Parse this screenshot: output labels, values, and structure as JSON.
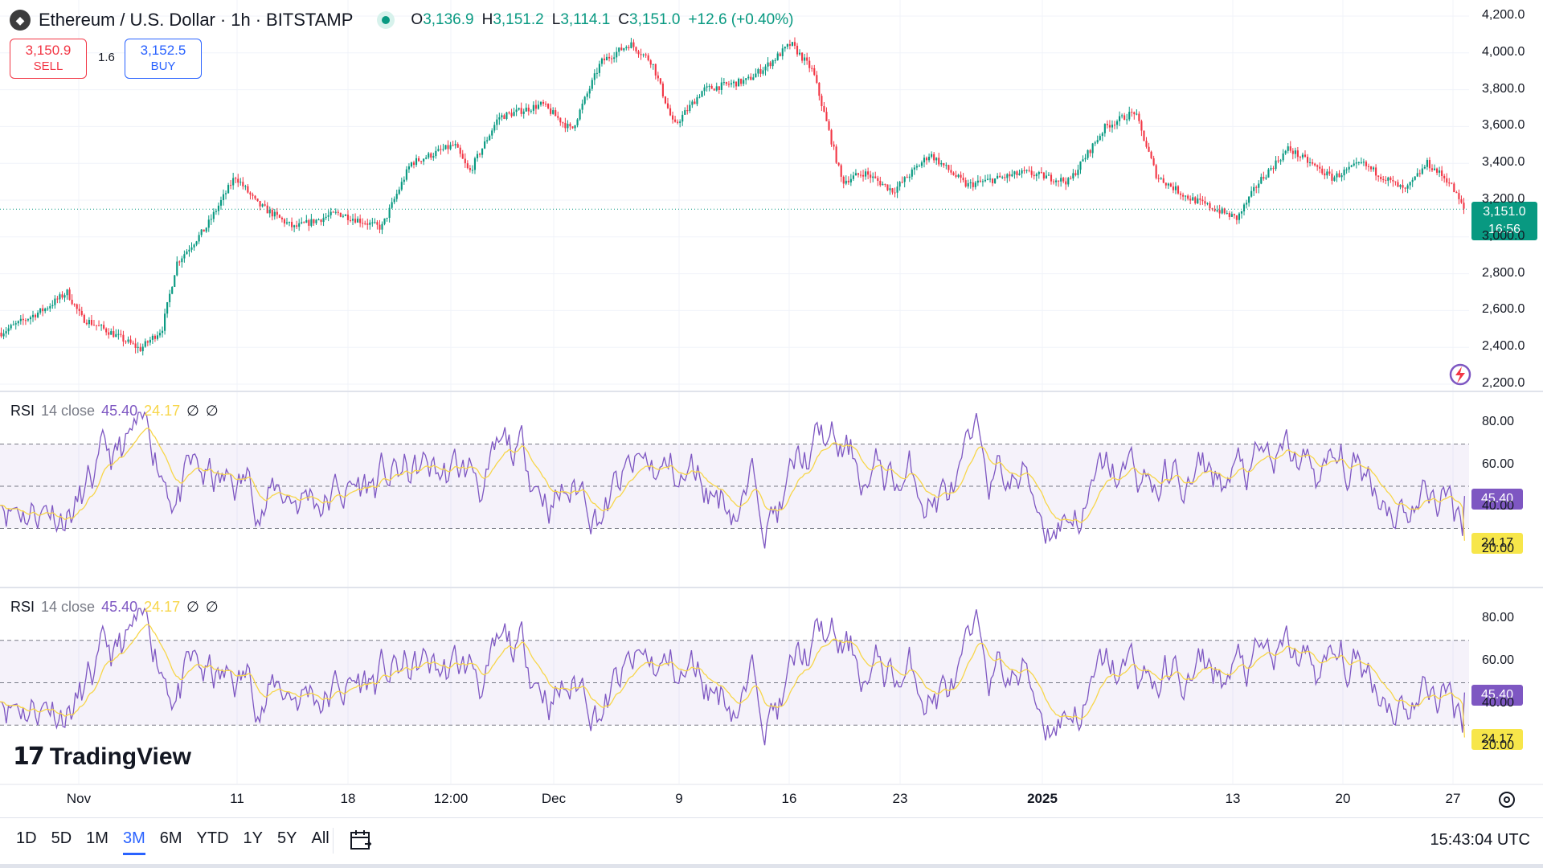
{
  "header": {
    "symbol": "Ethereum",
    "separator1": "/",
    "quote": "U.S. Dollar",
    "dot1": "·",
    "interval": "1h",
    "dot2": "·",
    "exchange": "BITSTAMP",
    "ohlc": {
      "o": "3,136.9",
      "h": "3,151.2",
      "l": "3,114.1",
      "c": "3,151.0",
      "change": "+12.6 (+0.40%)"
    }
  },
  "trade": {
    "sell_price": "3,150.9",
    "sell_label": "SELL",
    "spread": "1.6",
    "buy_price": "3,152.5",
    "buy_label": "BUY"
  },
  "price_tag": {
    "price": "3,151.0",
    "countdown": "16:56"
  },
  "rsi_panels": [
    {
      "name": "RSI",
      "params": "14 close",
      "rsi": "45.40",
      "ma": "24.17",
      "extra1": "∅",
      "extra2": "∅"
    },
    {
      "name": "RSI",
      "params": "14 close",
      "rsi": "45.40",
      "ma": "24.17",
      "extra1": "∅",
      "extra2": "∅"
    }
  ],
  "brand": "TradingView",
  "ranges": [
    "1D",
    "5D",
    "1M",
    "3M",
    "6M",
    "YTD",
    "1Y",
    "5Y",
    "All"
  ],
  "active_range": "3M",
  "clock": "15:43:04 UTC",
  "colors": {
    "up": "#089981",
    "down": "#f23645",
    "rsi": "#7e57c2",
    "rsi_ma": "#f7d64a",
    "accent": "#2962ff"
  },
  "chart_data": [
    {
      "type": "candlestick",
      "title": "Ethereum / U.S. Dollar · 1h · BITSTAMP",
      "y_ticks": [
        "4,200.0",
        "4,000.0",
        "3,800.0",
        "3,600.0",
        "3,400.0",
        "3,200.0",
        "3,000.0",
        "2,800.0",
        "2,600.0",
        "2,400.0",
        "2,200.0"
      ],
      "ylim": [
        2200,
        4200
      ],
      "x_ticks": [
        {
          "label": "Nov",
          "bold": false
        },
        {
          "label": "11",
          "bold": false
        },
        {
          "label": "18",
          "bold": false
        },
        {
          "label": "12:00",
          "bold": false
        },
        {
          "label": "Dec",
          "bold": false
        },
        {
          "label": "9",
          "bold": false
        },
        {
          "label": "16",
          "bold": false
        },
        {
          "label": "23",
          "bold": false
        },
        {
          "label": "2025",
          "bold": true
        },
        {
          "label": "13",
          "bold": false
        },
        {
          "label": "20",
          "bold": false
        },
        {
          "label": "27",
          "bold": false
        }
      ],
      "last_price": 3151.0,
      "trend_points": [
        [
          0,
          2480
        ],
        [
          0.03,
          2610
        ],
        [
          0.045,
          2700
        ],
        [
          0.055,
          2560
        ],
        [
          0.075,
          2480
        ],
        [
          0.095,
          2390
        ],
        [
          0.11,
          2500
        ],
        [
          0.12,
          2860
        ],
        [
          0.14,
          3050
        ],
        [
          0.16,
          3330
        ],
        [
          0.175,
          3180
        ],
        [
          0.2,
          3050
        ],
        [
          0.23,
          3130
        ],
        [
          0.26,
          3050
        ],
        [
          0.28,
          3400
        ],
        [
          0.31,
          3500
        ],
        [
          0.32,
          3350
        ],
        [
          0.34,
          3650
        ],
        [
          0.37,
          3720
        ],
        [
          0.39,
          3580
        ],
        [
          0.41,
          3950
        ],
        [
          0.43,
          4050
        ],
        [
          0.445,
          3950
        ],
        [
          0.46,
          3600
        ],
        [
          0.48,
          3800
        ],
        [
          0.51,
          3850
        ],
        [
          0.525,
          3940
        ],
        [
          0.54,
          4050
        ],
        [
          0.555,
          3900
        ],
        [
          0.575,
          3300
        ],
        [
          0.59,
          3350
        ],
        [
          0.61,
          3250
        ],
        [
          0.635,
          3450
        ],
        [
          0.66,
          3280
        ],
        [
          0.7,
          3350
        ],
        [
          0.73,
          3300
        ],
        [
          0.755,
          3600
        ],
        [
          0.775,
          3680
        ],
        [
          0.79,
          3330
        ],
        [
          0.81,
          3220
        ],
        [
          0.845,
          3100
        ],
        [
          0.86,
          3300
        ],
        [
          0.88,
          3480
        ],
        [
          0.91,
          3320
        ],
        [
          0.93,
          3400
        ],
        [
          0.96,
          3250
        ],
        [
          0.975,
          3400
        ],
        [
          0.99,
          3300
        ],
        [
          1.0,
          3151
        ]
      ]
    },
    {
      "type": "line",
      "title": "RSI 14 close",
      "y_ticks": [
        "80.00",
        "60.00",
        "40.00",
        "20.00"
      ],
      "ylim": [
        10,
        90
      ],
      "bands": [
        30,
        50,
        70
      ],
      "series": [
        {
          "name": "RSI",
          "last": 45.4
        },
        {
          "name": "RSI MA",
          "last": 24.17
        }
      ]
    }
  ]
}
